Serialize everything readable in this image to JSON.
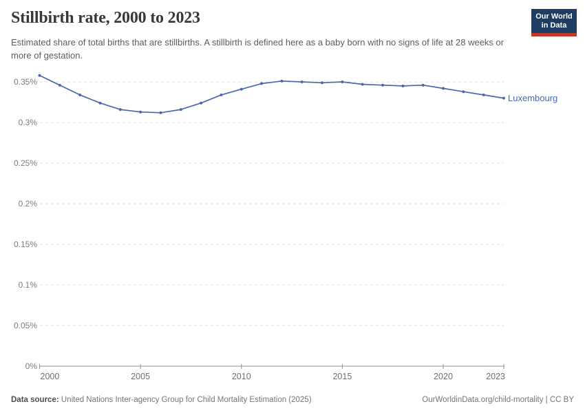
{
  "header": {
    "title": "Stillbirth rate, 2000 to 2023",
    "subtitle": "Estimated share of total births that are stillbirths. A stillbirth is defined here as a baby born with no signs of life at 28 weeks or more of gestation.",
    "logo": {
      "line1": "Our World",
      "line2": "in Data",
      "bg_color": "#1d3d63",
      "bar_color": "#c0392b",
      "text_color": "#ffffff"
    }
  },
  "chart_data": {
    "type": "line",
    "title": "Stillbirth rate, 2000 to 2023",
    "unit": "%",
    "x": [
      2000,
      2001,
      2002,
      2003,
      2004,
      2005,
      2006,
      2007,
      2008,
      2009,
      2010,
      2011,
      2012,
      2013,
      2014,
      2015,
      2016,
      2017,
      2018,
      2019,
      2020,
      2021,
      2022,
      2023
    ],
    "series": [
      {
        "name": "Luxembourg",
        "color": "#4a68a8",
        "values": [
          0.358,
          0.346,
          0.334,
          0.324,
          0.316,
          0.313,
          0.312,
          0.316,
          0.324,
          0.334,
          0.341,
          0.348,
          0.351,
          0.35,
          0.349,
          0.35,
          0.347,
          0.346,
          0.345,
          0.346,
          0.342,
          0.338,
          0.334,
          0.33
        ]
      }
    ],
    "xlabel": "",
    "ylabel": "",
    "xlim": [
      2000,
      2023
    ],
    "ylim": [
      0,
      0.358
    ],
    "xticks": [
      2000,
      2005,
      2010,
      2015,
      2020,
      2023
    ],
    "yticks": [
      {
        "value": 0,
        "label": "0%"
      },
      {
        "value": 0.05,
        "label": "0.05%"
      },
      {
        "value": 0.1,
        "label": "0.1%"
      },
      {
        "value": 0.15,
        "label": "0.15%"
      },
      {
        "value": 0.2,
        "label": "0.2%"
      },
      {
        "value": 0.25,
        "label": "0.25%"
      },
      {
        "value": 0.3,
        "label": "0.3%"
      },
      {
        "value": 0.35,
        "label": "0.35%"
      }
    ],
    "grid": "horizontal-dashed",
    "legend": "entity label at end of line",
    "entity_label": "Luxembourg"
  },
  "footer": {
    "source_label": "Data source:",
    "source_text": " United Nations Inter-agency Group for Child Mortality Estimation (2025)",
    "attribution": "OurWorldinData.org/child-mortality | CC BY"
  }
}
